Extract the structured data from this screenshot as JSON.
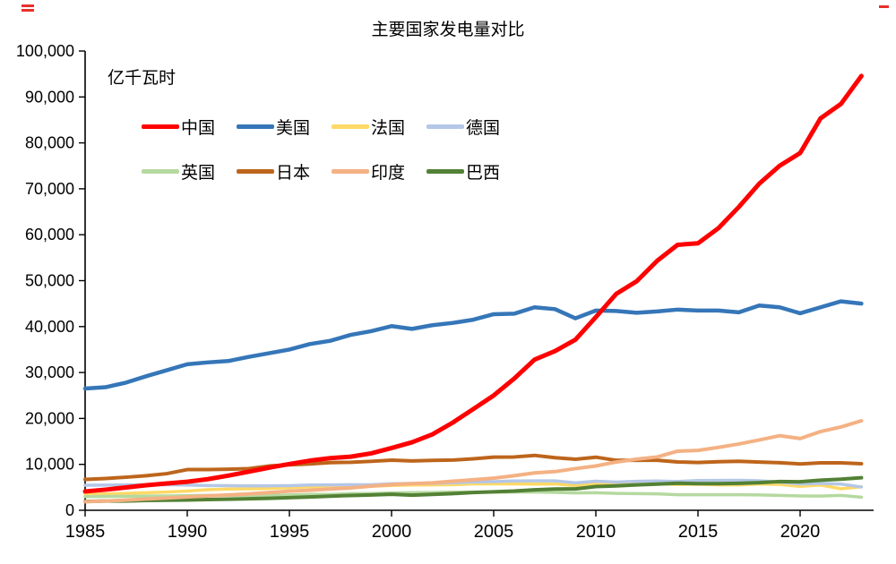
{
  "chart_data": {
    "type": "line",
    "title": "主要国家发电量对比",
    "ylabel": "亿千瓦时",
    "xlabel": "",
    "ylim": [
      0,
      100000
    ],
    "ytick_step": 10000,
    "xticks": [
      1985,
      1990,
      1995,
      2000,
      2005,
      2010,
      2015,
      2020
    ],
    "grid": false,
    "legend_position": "top-left-inside",
    "x": [
      1985,
      1986,
      1987,
      1988,
      1989,
      1990,
      1991,
      1992,
      1993,
      1994,
      1995,
      1996,
      1997,
      1998,
      1999,
      2000,
      2001,
      2002,
      2003,
      2004,
      2005,
      2006,
      2007,
      2008,
      2009,
      2010,
      2011,
      2012,
      2013,
      2014,
      2015,
      2016,
      2017,
      2018,
      2019,
      2020,
      2021,
      2022,
      2023
    ],
    "series": [
      {
        "key": "china",
        "name": "中国",
        "color": "#ff0000",
        "width": 5,
        "z": 8,
        "values": [
          4107,
          4496,
          4973,
          5452,
          5848,
          6212,
          6775,
          7539,
          8395,
          9281,
          10070,
          10813,
          11356,
          11670,
          12393,
          13556,
          14808,
          16540,
          19106,
          22033,
          25003,
          28657,
          32816,
          34669,
          37147,
          42072,
          47130,
          49876,
          54316,
          57800,
          58146,
          61425,
          66044,
          71118,
          75034,
          77791,
          85343,
          88487,
          94564
        ]
      },
      {
        "key": "usa",
        "name": "美国",
        "color": "#3576b8",
        "width": 4.5,
        "z": 7,
        "values": [
          26500,
          26800,
          27800,
          29200,
          30500,
          31800,
          32200,
          32500,
          33400,
          34200,
          35000,
          36200,
          36900,
          38200,
          39000,
          40100,
          39500,
          40300,
          40800,
          41500,
          42700,
          42800,
          44200,
          43800,
          41800,
          43500,
          43400,
          43000,
          43300,
          43700,
          43500,
          43500,
          43100,
          44600,
          44200,
          42900,
          44200,
          45500,
          45000
        ]
      },
      {
        "key": "france",
        "name": "法国",
        "color": "#ffd966",
        "width": 3.5,
        "z": 1,
        "values": [
          3440,
          3560,
          3680,
          3830,
          3980,
          4200,
          4480,
          4620,
          4680,
          4760,
          4930,
          5130,
          5050,
          5110,
          5240,
          5400,
          5500,
          5530,
          5570,
          5740,
          5750,
          5740,
          5700,
          5740,
          5360,
          5690,
          5620,
          5640,
          5750,
          5620,
          5680,
          5530,
          5540,
          5730,
          5620,
          5220,
          5510,
          4680,
          5120
        ]
      },
      {
        "key": "germany",
        "name": "德国",
        "color": "#b4c7e7",
        "width": 3.5,
        "z": 3,
        "values": [
          5450,
          5480,
          5530,
          5560,
          5580,
          5500,
          5390,
          5370,
          5320,
          5330,
          5370,
          5500,
          5520,
          5570,
          5560,
          5770,
          5860,
          5870,
          6010,
          6160,
          6230,
          6390,
          6410,
          6410,
          5960,
          6330,
          6130,
          6300,
          6380,
          6270,
          6480,
          6500,
          6540,
          6430,
          6120,
          5740,
          5880,
          5710,
          5080
        ]
      },
      {
        "key": "uk",
        "name": "英国",
        "color": "#b5d9a0",
        "width": 3.5,
        "z": 2,
        "values": [
          2980,
          3010,
          3050,
          3100,
          3130,
          3200,
          3230,
          3210,
          3230,
          3250,
          3340,
          3470,
          3450,
          3620,
          3650,
          3770,
          3850,
          3870,
          3980,
          3940,
          3980,
          3980,
          3970,
          3890,
          3770,
          3820,
          3680,
          3630,
          3590,
          3390,
          3390,
          3390,
          3380,
          3330,
          3230,
          3120,
          3100,
          3250,
          2860
        ]
      },
      {
        "key": "japan",
        "name": "日本",
        "color": "#bd651c",
        "width": 4,
        "z": 5,
        "values": [
          6720,
          6930,
          7200,
          7530,
          7980,
          8860,
          8880,
          8950,
          9060,
          9640,
          9900,
          10090,
          10380,
          10460,
          10660,
          10920,
          10750,
          10870,
          10930,
          11210,
          11570,
          11610,
          11950,
          11460,
          11120,
          11560,
          10880,
          10890,
          10900,
          10530,
          10410,
          10580,
          10680,
          10510,
          10360,
          10090,
          10330,
          10340,
          10130
        ]
      },
      {
        "key": "india",
        "name": "印度",
        "color": "#f4b183",
        "width": 4,
        "z": 6,
        "values": [
          1880,
          2030,
          2210,
          2450,
          2680,
          2890,
          3150,
          3340,
          3560,
          3850,
          4170,
          4360,
          4630,
          4860,
          5270,
          5610,
          5790,
          5960,
          6330,
          6650,
          6990,
          7530,
          8130,
          8420,
          9080,
          9650,
          10510,
          11130,
          11610,
          12870,
          13040,
          13700,
          14440,
          15320,
          16240,
          15620,
          17140,
          18140,
          19490
        ]
      },
      {
        "key": "brazil",
        "name": "巴西",
        "color": "#538135",
        "width": 4,
        "z": 4,
        "values": [
          1930,
          2020,
          2020,
          2140,
          2190,
          2230,
          2340,
          2420,
          2520,
          2600,
          2750,
          2910,
          3080,
          3220,
          3340,
          3490,
          3280,
          3450,
          3640,
          3870,
          4030,
          4190,
          4450,
          4630,
          4660,
          5160,
          5310,
          5530,
          5700,
          5900,
          5810,
          5790,
          5880,
          6010,
          6260,
          6210,
          6560,
          6770,
          7080
        ]
      }
    ]
  }
}
